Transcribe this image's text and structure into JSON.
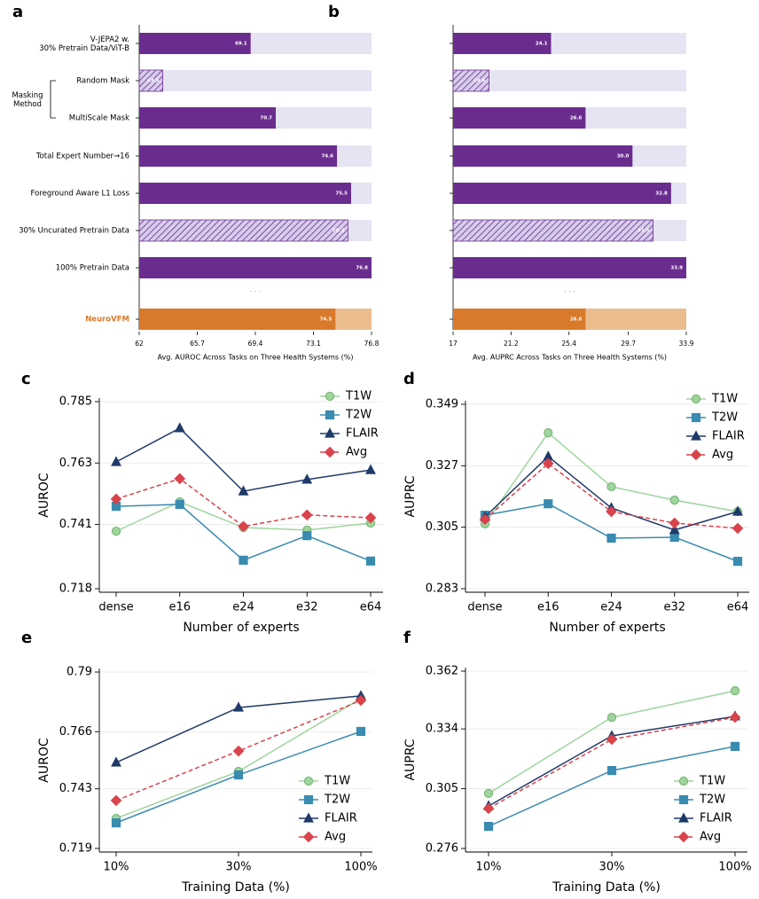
{
  "chart_data": [
    {
      "type": "hbar",
      "panel_label": "a",
      "categories": [
        "V-JEPA2 w.\n30% Pretrain Data/ViT-B",
        "Random Mask",
        "MultiScale Mask",
        "Total Expert Number→16",
        "Foreground Aware L1 Loss",
        "30% Uncurated Pretrain Data",
        "100% Pretrain Data",
        "NeuroVFM"
      ],
      "values": [
        69.1,
        63.5,
        70.7,
        74.6,
        75.5,
        75.3,
        76.8,
        74.5
      ],
      "value_labels": [
        "69.1",
        "63.5",
        "70.7",
        "74.6",
        "75.5",
        "75.3",
        "76.8",
        "74.5"
      ],
      "color": "#6a2c8e",
      "colors": [
        "#6a2c8e",
        "#6a2c8e",
        "#6a2c8e",
        "#6a2c8e",
        "#6a2c8e",
        "#6a2c8e",
        "#6a2c8e",
        "#d97a2b"
      ],
      "background_colors": [
        "#e6e3f3",
        "#e6e3f3",
        "#e6e3f3",
        "#e6e3f3",
        "#e6e3f3",
        "#e6e3f3",
        "#e6e3f3",
        "#ebbd8e"
      ],
      "hatched": [
        false,
        true,
        false,
        false,
        false,
        true,
        false,
        false
      ],
      "annotation": "Masking\nMethod",
      "separator": "· · ·",
      "xlim": [
        62,
        76.8
      ],
      "xticks": [
        62,
        65.7,
        69.4,
        73.1,
        76.8
      ],
      "xlabel": "Avg. AUROC Across Tasks on Three Health Systems (%)"
    },
    {
      "type": "hbar",
      "panel_label": "b",
      "values": [
        24.1,
        19.6,
        26.6,
        30.0,
        32.8,
        31.5,
        33.9,
        26.6
      ],
      "value_labels": [
        "24.1",
        "19.6",
        "26.6",
        "30.0",
        "32.8",
        "31.5",
        "33.9",
        "26.6"
      ],
      "color": "#6a2c8e",
      "colors": [
        "#6a2c8e",
        "#6a2c8e",
        "#6a2c8e",
        "#6a2c8e",
        "#6a2c8e",
        "#6a2c8e",
        "#6a2c8e",
        "#d97a2b"
      ],
      "background_colors": [
        "#e6e3f3",
        "#e6e3f3",
        "#e6e3f3",
        "#e6e3f3",
        "#e6e3f3",
        "#e6e3f3",
        "#e6e3f3",
        "#ebbd8e"
      ],
      "hatched": [
        false,
        true,
        false,
        false,
        false,
        true,
        false,
        false
      ],
      "separator": "· · ·",
      "xlim": [
        17,
        33.9
      ],
      "xticks": [
        17,
        21.2,
        25.4,
        29.7,
        33.9
      ],
      "xlabel": "Avg. AUPRC Across Tasks on Three Health Systems (%)"
    },
    {
      "type": "line",
      "panel_label": "c",
      "xlabel": "Number of experts",
      "ylabel": "AUROC",
      "categories": [
        "dense",
        "e16",
        "e24",
        "e32",
        "e64"
      ],
      "ylim": [
        0.718,
        0.785
      ],
      "yticks": [
        0.718,
        0.741,
        0.763,
        0.785
      ],
      "grid": true,
      "legend": "upper right",
      "series": [
        {
          "name": "T1W",
          "color": "#9fd49d",
          "marker": "circle",
          "linestyle": "solid",
          "values": [
            0.7386,
            0.7491,
            0.7399,
            0.739,
            0.7415
          ]
        },
        {
          "name": "T2W",
          "color": "#3a8bb0",
          "marker": "square",
          "linestyle": "solid",
          "values": [
            0.7475,
            0.7482,
            0.7282,
            0.737,
            0.7279
          ]
        },
        {
          "name": "FLAIR",
          "color": "#1f3a68",
          "marker": "triangle",
          "linestyle": "solid",
          "values": [
            0.7634,
            0.7755,
            0.7529,
            0.7571,
            0.7605
          ]
        },
        {
          "name": "Avg",
          "color": "#d9434b",
          "marker": "diamond",
          "linestyle": "dashed",
          "values": [
            0.7501,
            0.7574,
            0.7403,
            0.7444,
            0.7434
          ]
        }
      ]
    },
    {
      "type": "line",
      "panel_label": "d",
      "xlabel": "Number of experts",
      "ylabel": "AUPRC",
      "categories": [
        "dense",
        "e16",
        "e24",
        "e32",
        "e64"
      ],
      "ylim": [
        0.283,
        0.349
      ],
      "yticks": [
        0.283,
        0.305,
        0.327,
        0.349
      ],
      "grid": true,
      "legend": "upper right",
      "series": [
        {
          "name": "T1W",
          "color": "#9fd49d",
          "marker": "circle",
          "linestyle": "solid",
          "values": [
            0.3062,
            0.3388,
            0.3195,
            0.3147,
            0.3106
          ]
        },
        {
          "name": "T2W",
          "color": "#3a8bb0",
          "marker": "square",
          "linestyle": "solid",
          "values": [
            0.3093,
            0.3134,
            0.3011,
            0.3014,
            0.2928
          ]
        },
        {
          "name": "FLAIR",
          "color": "#1f3a68",
          "marker": "triangle",
          "linestyle": "solid",
          "values": [
            0.3087,
            0.3303,
            0.3119,
            0.304,
            0.3106
          ]
        },
        {
          "name": "Avg",
          "color": "#d9434b",
          "marker": "diamond",
          "linestyle": "dashed",
          "values": [
            0.3078,
            0.3278,
            0.3106,
            0.3065,
            0.3046
          ]
        }
      ]
    },
    {
      "type": "line",
      "panel_label": "e",
      "xlabel": "Training Data (%)",
      "ylabel": "AUROC",
      "categories": [
        "10%",
        "30%",
        "100%"
      ],
      "ylim": [
        0.719,
        0.79
      ],
      "yticks": [
        0.719,
        0.743,
        0.766,
        0.79
      ],
      "grid": true,
      "legend": "lower right",
      "series": [
        {
          "name": "T1W",
          "color": "#9fd49d",
          "marker": "circle",
          "linestyle": "solid",
          "values": [
            0.7311,
            0.75,
            0.7793
          ]
        },
        {
          "name": "T2W",
          "color": "#3a8bb0",
          "marker": "square",
          "linestyle": "solid",
          "values": [
            0.7293,
            0.7486,
            0.7661
          ]
        },
        {
          "name": "FLAIR",
          "color": "#1f3a68",
          "marker": "triangle",
          "linestyle": "solid",
          "values": [
            0.7536,
            0.7757,
            0.7804
          ]
        },
        {
          "name": "Avg",
          "color": "#d9434b",
          "marker": "diamond",
          "linestyle": "dashed",
          "values": [
            0.7383,
            0.7582,
            0.7786
          ]
        }
      ]
    },
    {
      "type": "line",
      "panel_label": "f",
      "xlabel": "Training Data (%)",
      "ylabel": "AUPRC",
      "categories": [
        "10%",
        "30%",
        "100%"
      ],
      "ylim": [
        0.276,
        0.362
      ],
      "yticks": [
        0.276,
        0.305,
        0.334,
        0.362
      ],
      "grid": true,
      "legend": "lower right",
      "series": [
        {
          "name": "T1W",
          "color": "#9fd49d",
          "marker": "circle",
          "linestyle": "solid",
          "values": [
            0.3027,
            0.3396,
            0.3525
          ]
        },
        {
          "name": "T2W",
          "color": "#3a8bb0",
          "marker": "square",
          "linestyle": "solid",
          "values": [
            0.2867,
            0.3138,
            0.3255
          ]
        },
        {
          "name": "FLAIR",
          "color": "#1f3a68",
          "marker": "triangle",
          "linestyle": "solid",
          "values": [
            0.2966,
            0.3306,
            0.3401
          ]
        },
        {
          "name": "Avg",
          "color": "#d9434b",
          "marker": "diamond",
          "linestyle": "dashed",
          "values": [
            0.2954,
            0.3289,
            0.3396
          ]
        }
      ]
    }
  ]
}
